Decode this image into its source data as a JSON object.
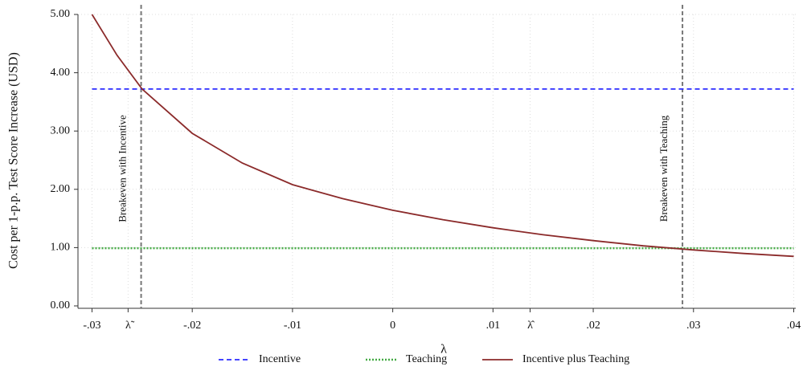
{
  "chart_data": {
    "type": "line",
    "y_label": "Cost per 1-p.p. Test Score Increase (USD)",
    "x_label": "λ",
    "xlim": [
      -0.0314,
      0.0402
    ],
    "ylim": [
      0,
      5
    ],
    "xticks": [
      {
        "value": -0.03,
        "label": "-.03"
      },
      {
        "value": -0.0264,
        "label": "λ̃"
      },
      {
        "value": -0.02,
        "label": "-.02"
      },
      {
        "value": -0.01,
        "label": "-.01"
      },
      0,
      {
        "value": 0.01,
        "label": ".01"
      },
      {
        "value": 0.0137,
        "label": "λ̂"
      },
      {
        "value": 0.02,
        "label": ".02"
      },
      {
        "value": 0.03,
        "label": ".03"
      },
      {
        "value": 0.04,
        "label": ".04"
      }
    ],
    "yticks": [
      {
        "value": 0,
        "label": "0.00"
      },
      {
        "value": 1,
        "label": "1.00"
      },
      {
        "value": 2,
        "label": "2.00"
      },
      {
        "value": 3,
        "label": "3.00"
      },
      {
        "value": 4,
        "label": "4.00"
      },
      {
        "value": 5,
        "label": "5.00"
      }
    ],
    "grid": true,
    "vlines": [
      {
        "x": -0.0251,
        "label": "Breakeven with Incentive"
      },
      {
        "x": 0.0289,
        "label": "Breakeven with Teaching"
      }
    ],
    "series": [
      {
        "name": "Incentive",
        "color": "#2b2bff",
        "style": "dashed",
        "x": [
          -0.03,
          0.04
        ],
        "values": [
          3.72,
          3.72
        ]
      },
      {
        "name": "Teaching",
        "color": "#44aa44",
        "style": "dotted",
        "x": [
          -0.03,
          0.04
        ],
        "values": [
          0.99,
          0.99
        ]
      },
      {
        "name": "Incentive plus Teaching",
        "color": "#8b2a2a",
        "style": "solid",
        "x": [
          -0.03,
          -0.0275,
          -0.025,
          -0.02,
          -0.015,
          -0.01,
          -0.005,
          0,
          0.005,
          0.01,
          0.015,
          0.02,
          0.025,
          0.03,
          0.035,
          0.04
        ],
        "values": [
          5.0,
          4.3,
          3.72,
          2.96,
          2.45,
          2.08,
          1.84,
          1.64,
          1.48,
          1.34,
          1.22,
          1.12,
          1.03,
          0.96,
          0.9,
          0.85
        ]
      }
    ]
  }
}
